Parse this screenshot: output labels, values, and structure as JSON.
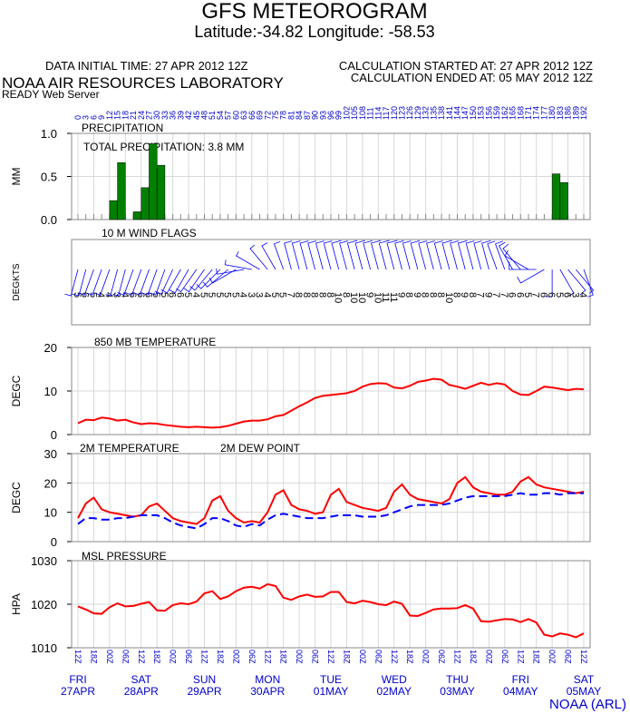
{
  "header": {
    "title": "GFS METEOROGRAM",
    "subtitle": "Latitude:-34.82 Longitude: -58.53",
    "data_time": "DATA INITIAL TIME: 27 APR 2012 12Z",
    "calc_started": "CALCULATION STARTED AT: 27 APR 2012 12Z",
    "calc_ended": "CALCULATION ENDED AT: 05 MAY 2012 12Z",
    "lab": "NOAA AIR RESOURCES LABORATORY",
    "server": "READY Web Server",
    "credit": "NOAA (ARL)"
  },
  "time_axis": {
    "xlim": [
      0,
      192
    ],
    "hours": [
      0,
      3,
      6,
      9,
      12,
      15,
      18,
      21,
      24,
      27,
      30,
      33,
      36,
      39,
      42,
      45,
      48,
      51,
      54,
      57,
      60,
      63,
      66,
      69,
      72,
      75,
      78,
      81,
      84,
      87,
      90,
      93,
      96,
      99,
      102,
      105,
      108,
      111,
      114,
      117,
      120,
      123,
      126,
      129,
      132,
      135,
      138,
      141,
      144,
      147,
      150,
      153,
      156,
      159,
      162,
      165,
      168,
      171,
      174,
      177,
      180,
      183,
      186,
      189,
      192
    ],
    "ticks": [
      {
        "value": 0,
        "label": "12Z"
      },
      {
        "value": 6,
        "label": "18Z"
      },
      {
        "value": 12,
        "label": "00Z"
      },
      {
        "value": 18,
        "label": "06Z"
      },
      {
        "value": 24,
        "label": "12Z"
      },
      {
        "value": 30,
        "label": "18Z"
      },
      {
        "value": 36,
        "label": "00Z"
      },
      {
        "value": 42,
        "label": "06Z"
      },
      {
        "value": 48,
        "label": "12Z"
      },
      {
        "value": 54,
        "label": "18Z"
      },
      {
        "value": 60,
        "label": "00Z"
      },
      {
        "value": 66,
        "label": "06Z"
      },
      {
        "value": 72,
        "label": "12Z"
      },
      {
        "value": 78,
        "label": "18Z"
      },
      {
        "value": 84,
        "label": "00Z"
      },
      {
        "value": 90,
        "label": "06Z"
      },
      {
        "value": 96,
        "label": "12Z"
      },
      {
        "value": 102,
        "label": "18Z"
      },
      {
        "value": 108,
        "label": "00Z"
      },
      {
        "value": 114,
        "label": "06Z"
      },
      {
        "value": 120,
        "label": "12Z"
      },
      {
        "value": 126,
        "label": "18Z"
      },
      {
        "value": 132,
        "label": "00Z"
      },
      {
        "value": 138,
        "label": "06Z"
      },
      {
        "value": 144,
        "label": "12Z"
      },
      {
        "value": 150,
        "label": "18Z"
      },
      {
        "value": 156,
        "label": "00Z"
      },
      {
        "value": 162,
        "label": "06Z"
      },
      {
        "value": 168,
        "label": "12Z"
      },
      {
        "value": 174,
        "label": "18Z"
      },
      {
        "value": 180,
        "label": "00Z"
      },
      {
        "value": 186,
        "label": "06Z"
      },
      {
        "value": 192,
        "label": "12Z"
      }
    ],
    "days": [
      {
        "hour": 0,
        "day": "FRI",
        "date": "27APR"
      },
      {
        "hour": 24,
        "day": "SAT",
        "date": "28APR"
      },
      {
        "hour": 48,
        "day": "SUN",
        "date": "29APR"
      },
      {
        "hour": 72,
        "day": "MON",
        "date": "30APR"
      },
      {
        "hour": 96,
        "day": "TUE",
        "date": "01MAY"
      },
      {
        "hour": 120,
        "day": "WED",
        "date": "02MAY"
      },
      {
        "hour": 144,
        "day": "THU",
        "date": "03MAY"
      },
      {
        "hour": 168,
        "day": "FRI",
        "date": "04MAY"
      },
      {
        "hour": 192,
        "day": "SAT",
        "date": "05MAY"
      }
    ]
  },
  "chart_data": [
    {
      "type": "bar",
      "title": "PRECIPITATION",
      "annotation": "TOTAL PRECIPITATION:   3.8 MM",
      "ylabel": "MM",
      "color": "#007f00",
      "ylim": [
        0,
        1
      ],
      "yticks": [
        {
          "value": 0,
          "label": "0.0"
        },
        0.5,
        {
          "value": 1,
          "label": "1.0"
        }
      ],
      "grid": true,
      "values": [
        0,
        0,
        0,
        0,
        0,
        0.22,
        0.66,
        0,
        0.09,
        0.37,
        0.88,
        0.63,
        0,
        0,
        0,
        0,
        0,
        0,
        0,
        0,
        0,
        0,
        0,
        0,
        0,
        0,
        0,
        0,
        0,
        0,
        0,
        0,
        0,
        0,
        0,
        0,
        0,
        0,
        0,
        0,
        0,
        0,
        0,
        0,
        0,
        0,
        0,
        0,
        0,
        0,
        0,
        0,
        0,
        0,
        0,
        0,
        0,
        0,
        0,
        0,
        0,
        0.53,
        0.43,
        0,
        0
      ]
    },
    {
      "type": "wind",
      "title": "10 M  WIND FLAGS",
      "ylabel": "DEGKTS",
      "color": "#0000ff",
      "speed": [
        5,
        6,
        5,
        4,
        4,
        3,
        4,
        6,
        6,
        6,
        5,
        5,
        6,
        6,
        5,
        4,
        5,
        5,
        5,
        5,
        5,
        4,
        3,
        3,
        4,
        5,
        5,
        7,
        8,
        8,
        8,
        8,
        8,
        10,
        8,
        10,
        10,
        9,
        10,
        11,
        11,
        9,
        8,
        9,
        8,
        8,
        8,
        10,
        8,
        9,
        8,
        7,
        9,
        7,
        7,
        6,
        6,
        5,
        7,
        6,
        6,
        5,
        6,
        3,
        4
      ],
      "direction": [
        195,
        195,
        200,
        200,
        200,
        195,
        195,
        200,
        200,
        200,
        200,
        200,
        205,
        210,
        210,
        215,
        215,
        220,
        225,
        230,
        240,
        260,
        280,
        300,
        320,
        330,
        340,
        345,
        345,
        345,
        345,
        345,
        345,
        345,
        345,
        345,
        345,
        345,
        345,
        345,
        345,
        345,
        345,
        345,
        345,
        345,
        345,
        345,
        345,
        345,
        345,
        345,
        345,
        340,
        340,
        330,
        320,
        300,
        270,
        240,
        180,
        150,
        140,
        140,
        160
      ]
    },
    {
      "type": "line",
      "title": "850 MB  TEMPERATURE",
      "ylabel": "DEGC",
      "color": "#ff0000",
      "ylim": [
        0,
        20
      ],
      "yticks": [
        0,
        10,
        20
      ],
      "grid": true,
      "values": [
        2.6,
        3.4,
        3.3,
        3.9,
        3.7,
        3.2,
        3.4,
        2.8,
        2.4,
        2.6,
        2.5,
        2.2,
        2.0,
        1.8,
        1.7,
        1.8,
        1.7,
        1.6,
        1.7,
        2.0,
        2.5,
        3.0,
        3.2,
        3.2,
        3.5,
        4.2,
        4.5,
        5.5,
        6.5,
        7.4,
        8.4,
        8.9,
        9.1,
        9.3,
        9.5,
        10.0,
        11.0,
        11.6,
        11.8,
        11.7,
        10.8,
        10.6,
        11.2,
        12.1,
        12.4,
        12.8,
        12.6,
        11.4,
        11.0,
        10.5,
        11.2,
        11.9,
        11.4,
        11.8,
        11.5,
        10.0,
        9.2,
        9.1,
        10.0,
        11.0,
        10.8,
        10.5,
        10.2,
        10.5,
        10.4
      ]
    },
    {
      "type": "line",
      "ylabel": "DEGC",
      "ylim": [
        0,
        30
      ],
      "yticks": [
        0,
        10,
        20,
        30
      ],
      "grid": true,
      "series": [
        {
          "name": "2M TEMPERATURE",
          "color": "#ff0000",
          "dashed": false,
          "values": [
            8,
            13,
            15,
            11,
            10,
            9.5,
            9,
            8.5,
            9,
            12,
            13,
            10.5,
            8,
            7,
            6.5,
            6,
            8,
            14,
            15.5,
            10.5,
            8,
            6.5,
            7,
            6.5,
            10,
            16,
            17.5,
            12.5,
            11,
            10.5,
            9.5,
            10,
            16,
            18,
            13.5,
            12.5,
            11.5,
            11,
            10.5,
            11.5,
            17,
            19.5,
            16,
            14.5,
            14,
            13.5,
            13,
            14.5,
            20,
            22,
            18.5,
            17,
            16.5,
            16,
            16,
            17,
            20.5,
            22,
            19.5,
            18.5,
            18,
            17.5,
            17,
            16.5,
            17
          ]
        },
        {
          "name": "2M   DEW POINT",
          "color": "#0000ff",
          "dashed": true,
          "values": [
            6,
            8,
            8,
            7.5,
            7.5,
            8,
            8,
            8.5,
            9,
            9,
            9,
            8,
            6.5,
            5.5,
            5,
            4.5,
            6,
            8,
            8,
            7,
            5.5,
            5,
            6,
            5.5,
            7.5,
            9,
            9.5,
            9,
            8.5,
            8,
            8,
            8,
            8.5,
            9,
            9,
            9,
            8.5,
            8.5,
            8.5,
            9,
            10,
            11,
            12,
            12.5,
            12.5,
            12.5,
            12.5,
            13,
            14,
            15,
            15.5,
            15.5,
            15.5,
            15.5,
            15.5,
            16,
            16.5,
            16,
            16,
            16.5,
            16.5,
            16,
            16.5,
            16.5,
            16.5
          ]
        }
      ]
    },
    {
      "type": "line",
      "title": "MSL PRESSURE",
      "ylabel": "HPA",
      "color": "#ff0000",
      "ylim": [
        1010,
        1030
      ],
      "yticks": [
        1010,
        1020,
        1030
      ],
      "grid": true,
      "values": [
        1019.5,
        1018.8,
        1017.9,
        1017.8,
        1019.3,
        1020.2,
        1019.5,
        1019.6,
        1020.1,
        1020.5,
        1018.6,
        1018.5,
        1019.8,
        1020.2,
        1020,
        1020.6,
        1022.5,
        1023,
        1021.2,
        1021.8,
        1023,
        1023.8,
        1024,
        1023.6,
        1024.6,
        1024.2,
        1021.5,
        1021,
        1021.8,
        1022.2,
        1021.7,
        1021.8,
        1022.8,
        1022.8,
        1020.5,
        1020.2,
        1020.8,
        1020.5,
        1020,
        1019.8,
        1020.6,
        1020.1,
        1017.4,
        1017.3,
        1018,
        1018.8,
        1019,
        1019,
        1019.1,
        1019.8,
        1019,
        1016.1,
        1016,
        1016.3,
        1016.6,
        1016.5,
        1015.9,
        1016.6,
        1015.8,
        1013,
        1012.6,
        1013.3,
        1013,
        1012.4,
        1013.3
      ]
    }
  ]
}
